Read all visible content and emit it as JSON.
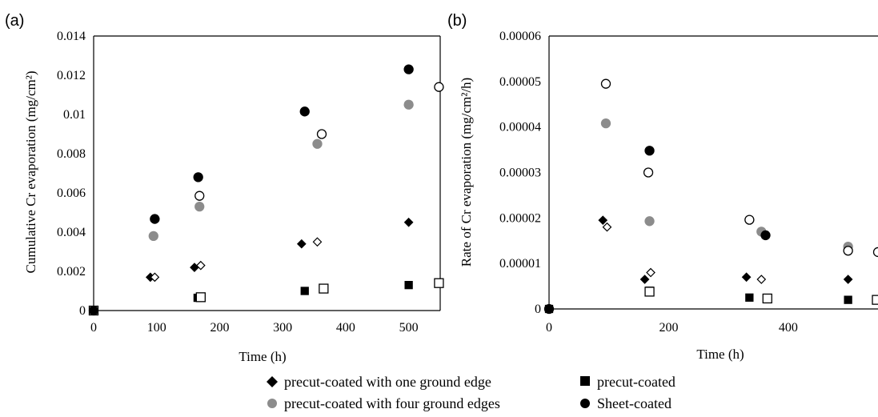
{
  "chart_data": [
    {
      "panel_label": "(a)",
      "type": "scatter",
      "xlabel": "Time (h)",
      "ylabel": "Cumulative Cr evaporation (mg/cm²)",
      "xlim": [
        0,
        550
      ],
      "ylim": [
        0,
        0.014
      ],
      "x_ticks": [
        "0",
        "100",
        "200",
        "300",
        "400",
        "500"
      ],
      "y_ticks": [
        "0",
        "0.002",
        "0.004",
        "0.006",
        "0.008",
        "0.01",
        "0.012",
        "0.014"
      ],
      "grid": false,
      "series": [
        {
          "name": "precut-coated with one ground edge",
          "marker": "diamond",
          "filled": true,
          "color": "#000000",
          "points": [
            [
              0,
              0
            ],
            [
              90,
              0.0017
            ],
            [
              160,
              0.0022
            ],
            [
              330,
              0.0034
            ],
            [
              500,
              0.0045
            ]
          ]
        },
        {
          "name": "",
          "marker": "diamond",
          "filled": false,
          "color": "#000000",
          "points": [
            [
              97,
              0.0017
            ],
            [
              170,
              0.0023
            ],
            [
              355,
              0.0035
            ]
          ]
        },
        {
          "name": "precut-coated",
          "marker": "square",
          "filled": true,
          "color": "#000000",
          "points": [
            [
              0,
              0
            ],
            [
              165,
              0.00065
            ],
            [
              335,
              0.001
            ],
            [
              500,
              0.0013
            ]
          ]
        },
        {
          "name": "",
          "marker": "square",
          "filled": false,
          "color": "#000000",
          "points": [
            [
              0,
              0
            ],
            [
              170,
              0.00068
            ],
            [
              365,
              0.00112
            ],
            [
              548,
              0.0014
            ]
          ]
        },
        {
          "name": "precut-coated with four ground edges",
          "marker": "circle",
          "filled": true,
          "color": "#8c8c8c",
          "points": [
            [
              95,
              0.0038
            ],
            [
              168,
              0.0053
            ],
            [
              355,
              0.0085
            ],
            [
              500,
              0.0105
            ]
          ]
        },
        {
          "name": "Sheet-coated",
          "marker": "circle",
          "filled": true,
          "color": "#000000",
          "points": [
            [
              0,
              0
            ],
            [
              97,
              0.00467
            ],
            [
              166,
              0.0068
            ],
            [
              335,
              0.01015
            ],
            [
              500,
              0.0123
            ]
          ]
        },
        {
          "name": "",
          "marker": "circle",
          "filled": false,
          "color": "#000000",
          "points": [
            [
              168,
              0.00585
            ],
            [
              362,
              0.009
            ],
            [
              548,
              0.0114
            ]
          ]
        }
      ]
    },
    {
      "panel_label": "(b)",
      "type": "scatter",
      "xlabel": "Time (h)",
      "ylabel": "Rate of Cr evaporation (mg/cm²/h)",
      "xlim": [
        0,
        550
      ],
      "ylim": [
        0,
        6e-05
      ],
      "x_ticks": [
        "0",
        "200",
        "400"
      ],
      "y_ticks": [
        "0",
        "0.00001",
        "0.00002",
        "0.00003",
        "0.00004",
        "0.00005",
        "0.00006"
      ],
      "grid": false,
      "series": [
        {
          "name": "precut-coated with one ground edge",
          "marker": "diamond",
          "filled": true,
          "color": "#000000",
          "points": [
            [
              0,
              0
            ],
            [
              90,
              1.95e-05
            ],
            [
              160,
              6.5e-06
            ],
            [
              330,
              7e-06
            ],
            [
              500,
              6.5e-06
            ]
          ]
        },
        {
          "name": "",
          "marker": "diamond",
          "filled": false,
          "color": "#000000",
          "points": [
            [
              97,
              1.8e-05
            ],
            [
              170,
              8e-06
            ],
            [
              355,
              6.5e-06
            ]
          ]
        },
        {
          "name": "precut-coated",
          "marker": "square",
          "filled": true,
          "color": "#000000",
          "points": [
            [
              0,
              0
            ],
            [
              168,
              4e-06
            ],
            [
              335,
              2.5e-06
            ],
            [
              500,
              2e-06
            ]
          ]
        },
        {
          "name": "",
          "marker": "square",
          "filled": false,
          "color": "#000000",
          "points": [
            [
              168,
              3.8e-06
            ],
            [
              365,
              2.3e-06
            ],
            [
              548,
              2e-06
            ]
          ]
        },
        {
          "name": "precut-coated with four ground edges",
          "marker": "circle",
          "filled": true,
          "color": "#8c8c8c",
          "points": [
            [
              95,
              4.08e-05
            ],
            [
              168,
              1.93e-05
            ],
            [
              355,
              1.7e-05
            ],
            [
              500,
              1.37e-05
            ]
          ]
        },
        {
          "name": "Sheet-coated",
          "marker": "circle",
          "filled": true,
          "color": "#000000",
          "points": [
            [
              0,
              0
            ],
            [
              168,
              3.48e-05
            ],
            [
              362,
              1.62e-05
            ]
          ]
        },
        {
          "name": "",
          "marker": "circle",
          "filled": false,
          "color": "#000000",
          "points": [
            [
              95,
              4.95e-05
            ],
            [
              166,
              3e-05
            ],
            [
              335,
              1.96e-05
            ],
            [
              500,
              1.28e-05
            ],
            [
              550,
              1.25e-05
            ]
          ]
        }
      ]
    }
  ],
  "legend": {
    "placement": "bottom-center",
    "items": [
      {
        "label": "precut-coated with one ground edge",
        "marker": "diamond",
        "color": "#000000"
      },
      {
        "label": "precut-coated",
        "marker": "square",
        "color": "#000000"
      },
      {
        "label": "precut-coated with four ground edges",
        "marker": "circle",
        "color": "#8c8c8c"
      },
      {
        "label": "Sheet-coated",
        "marker": "circle",
        "color": "#000000"
      }
    ]
  }
}
